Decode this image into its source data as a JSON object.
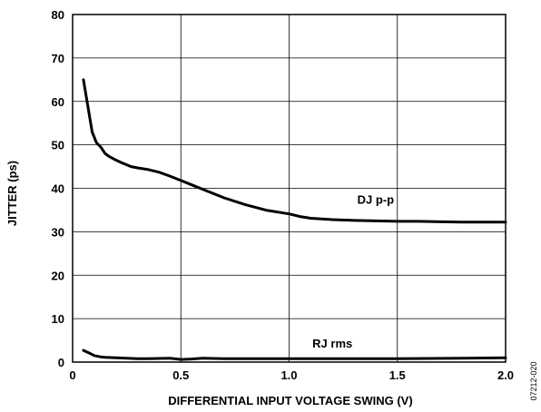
{
  "chart_data": {
    "type": "line",
    "xlabel": "DIFFERENTIAL INPUT VOLTAGE SWING (V)",
    "ylabel": "JITTER (ps)",
    "xlim": [
      0,
      2.0
    ],
    "ylim": [
      0,
      80
    ],
    "x_ticks": [
      "0",
      "0.5",
      "1.0",
      "1.5",
      "2.0"
    ],
    "y_ticks": [
      "0",
      "10",
      "20",
      "30",
      "40",
      "50",
      "60",
      "70",
      "80"
    ],
    "grid": true,
    "series": [
      {
        "name": "DJ p-p",
        "x": [
          0.05,
          0.07,
          0.09,
          0.11,
          0.13,
          0.15,
          0.17,
          0.2,
          0.23,
          0.27,
          0.3,
          0.35,
          0.4,
          0.45,
          0.5,
          0.55,
          0.6,
          0.7,
          0.8,
          0.9,
          1.0,
          1.05,
          1.1,
          1.2,
          1.3,
          1.4,
          1.5,
          1.6,
          1.7,
          1.8,
          1.9,
          2.0
        ],
        "y": [
          65,
          59,
          53,
          50.5,
          49.5,
          48,
          47.3,
          46.5,
          45.8,
          45,
          44.7,
          44.3,
          43.7,
          42.8,
          41.8,
          40.8,
          39.8,
          37.8,
          36.2,
          34.9,
          34.1,
          33.5,
          33.1,
          32.8,
          32.6,
          32.5,
          32.4,
          32.4,
          32.3,
          32.2,
          32.2,
          32.2
        ],
        "color": "#000000"
      },
      {
        "name": "RJ rms",
        "x": [
          0.05,
          0.08,
          0.1,
          0.13,
          0.15,
          0.2,
          0.25,
          0.3,
          0.35,
          0.45,
          0.5,
          0.55,
          0.6,
          0.7,
          0.8,
          1.0,
          1.2,
          1.5,
          1.8,
          2.0
        ],
        "y": [
          2.7,
          2.0,
          1.5,
          1.2,
          1.1,
          1.0,
          0.9,
          0.8,
          0.8,
          0.9,
          0.6,
          0.7,
          0.9,
          0.8,
          0.8,
          0.8,
          0.8,
          0.8,
          0.9,
          1.0
        ],
        "color": "#000000"
      }
    ]
  },
  "doc_id": "07212-020"
}
